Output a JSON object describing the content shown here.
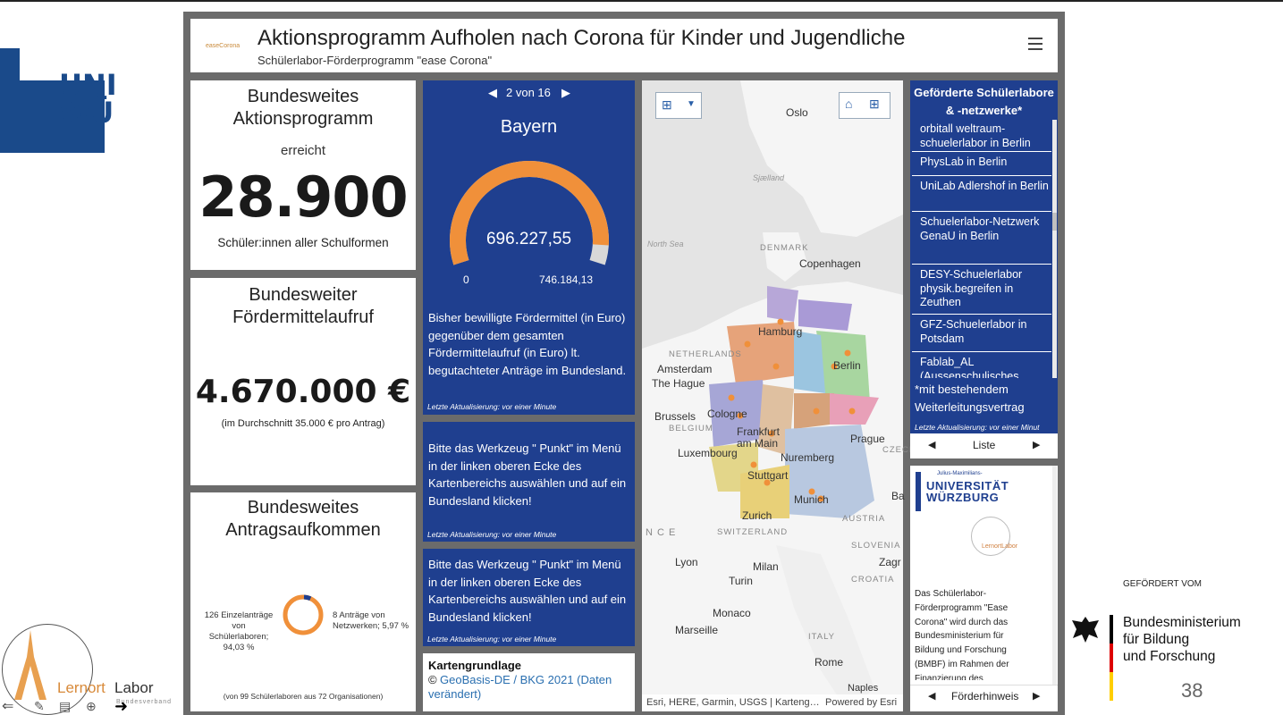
{
  "header": {
    "logo_text": "easeCorona",
    "title": "Aktionsprogramm Aufholen nach Corona für Kinder und Jugendliche",
    "subtitle": "Schülerlabor-Förderprogramm \"ease Corona\""
  },
  "left_logo": {
    "text_line1": "UNI",
    "text_line2": "WÜ"
  },
  "kpi1": {
    "title": "Bundesweites Aktionsprogramm",
    "pre": "erreicht",
    "value": "28.900",
    "caption": "Schüler:innen aller Schulformen"
  },
  "kpi2": {
    "title": "Bundesweiter Fördermittelaufruf",
    "value": "4.670.000 €",
    "caption": "(im Durchschnitt 35.000 € pro Antrag)"
  },
  "kpi3": {
    "title": "Bundesweites Antragsaufkommen",
    "left_label": "126 Einzelanträge von Schülerlaboren; 94,03 %",
    "right_label": "8 Anträge von Netzwerken; 5,97 %",
    "footer": "(von 99 Schülerlaboren aus 72 Organisationen)"
  },
  "chart_data": {
    "type": "pie",
    "categories": [
      "Einzelanträge von Schülerlaboren",
      "Anträge von Netzwerken"
    ],
    "values": [
      126,
      8
    ],
    "percent": [
      94.03,
      5.97
    ],
    "colors": [
      "#f0903a",
      "#1f3f8f"
    ]
  },
  "gauge": {
    "nav": "2 von 16",
    "title": "Bayern",
    "value": "696.227,55",
    "min": "0",
    "max": "746.184,13",
    "fraction": 0.933,
    "description": "Bisher bewilligte Fördermittel (in Euro) gegenüber dem gesamten Fördermittelaufruf (in Euro) lt. begutachteter Anträge im Bundesland.",
    "updated": "Letzte Aktualisierung: vor einer Minute",
    "color_fill": "#f0903a"
  },
  "hint1": {
    "text": "Bitte das Werkzeug \" Punkt\" im Menü in der linken oberen Ecke des Kartenbereichs auswählen und auf ein Bundesland klicken!",
    "updated": "Letzte Aktualisierung: vor einer Minute"
  },
  "hint2": {
    "text": "Bitte das Werkzeug \" Punkt\" im Menü in der linken oberen Ecke des Kartenbereichs auswählen und auf ein Bundesland klicken!",
    "updated": "Letzte Aktualisierung: vor einer Minute"
  },
  "basemap": {
    "title": "Kartengrundlage",
    "copyright_sign": "©",
    "link": "GeoBasis-DE / BKG 2021 (Daten verändert)"
  },
  "map": {
    "attribution": "Esri, HERE, Garmin, USGS | Karteng…",
    "powered": "Powered by Esri",
    "cities": [
      "Oslo",
      "Copenhagen",
      "Hamburg",
      "Berlin",
      "Amsterdam",
      "The Hague",
      "Brussels",
      "Cologne",
      "Frankfurt am Main",
      "Luxembourg",
      "Nuremberg",
      "Stuttgart",
      "Prague",
      "Munich",
      "Zurich",
      "Lyon",
      "Milan",
      "Turin",
      "Monaco",
      "Marseille",
      "Rome",
      "Naples",
      "Zagr",
      "Sjælland",
      "North Sea",
      "Ba"
    ],
    "countries": [
      "DENMARK",
      "NETHERLANDS",
      "BELGIUM",
      "SWITZERLAND",
      "AUSTRIA",
      "SLOVENIA",
      "CROATIA",
      "ITALY",
      "CZECHI",
      "N C E"
    ]
  },
  "list": {
    "header": "Geförderte Schülerlabore & -netzwerke*",
    "items": [
      "orbitall weltraum-schuelerlabor in Berlin",
      "PhysLab in Berlin",
      "UniLab Adlershof in Berlin",
      "Schuelerlabor-Netzwerk GenaU in Berlin",
      "DESY-Schuelerlabor physik.begreifen in Zeuthen",
      "GFZ-Schuelerlabor in Potsdam",
      "Fablab_AL (Aussenschulisches"
    ],
    "footnote": "*mit bestehendem Weiterleitungsvertrag",
    "updated": "Letzte Aktualisierung: vor einer Minut",
    "nav_label": "Liste"
  },
  "funding": {
    "uni_small": "Julius-Maximilians-",
    "uni_line1": "UNIVERSITÄT",
    "uni_line2": "WÜRZBURG",
    "lab_logo": "LernortLabor",
    "text": "Das Schülerlabor-Förderprogramm \"Ease Corona\" wird durch das Bundesministerium für Bildung und Forschung (BMBF) im Rahmen der Finanzierung des",
    "nav_label": "Förderhinweis"
  },
  "sponsor": {
    "pre": "GEFÖRDERT VOM",
    "line1": "Bundesministerium",
    "line2": "für Bildung",
    "line3": "und Forschung"
  },
  "page_number": "38",
  "bottom_logo": {
    "text1": "Lernort",
    "text2": "Labor",
    "sub": "Bundesverband"
  }
}
